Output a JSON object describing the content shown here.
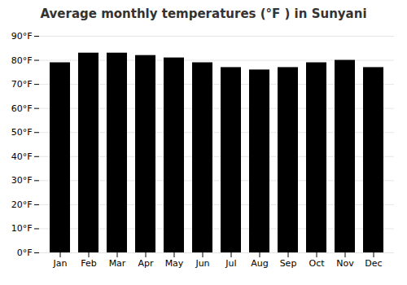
{
  "chart_data": {
    "type": "bar",
    "title": "Average monthly temperatures (°F ) in Sunyani",
    "categories": [
      "Jan",
      "Feb",
      "Mar",
      "Apr",
      "May",
      "Jun",
      "Jul",
      "Aug",
      "Sep",
      "Oct",
      "Nov",
      "Dec"
    ],
    "values": [
      79,
      83,
      83,
      82,
      81,
      79,
      77,
      76,
      77,
      79,
      80,
      77
    ],
    "ylim": [
      0,
      90
    ],
    "yticks": [
      {
        "value": 0,
        "label": "0°F"
      },
      {
        "value": 10,
        "label": "10°F"
      },
      {
        "value": 20,
        "label": "20°F"
      },
      {
        "value": 30,
        "label": "30°F"
      },
      {
        "value": 40,
        "label": "40°F"
      },
      {
        "value": 50,
        "label": "50°F"
      },
      {
        "value": 60,
        "label": "60°F"
      },
      {
        "value": 70,
        "label": "70°F"
      },
      {
        "value": 80,
        "label": "80°F"
      },
      {
        "value": 90,
        "label": "90°F"
      }
    ],
    "grid": true
  }
}
